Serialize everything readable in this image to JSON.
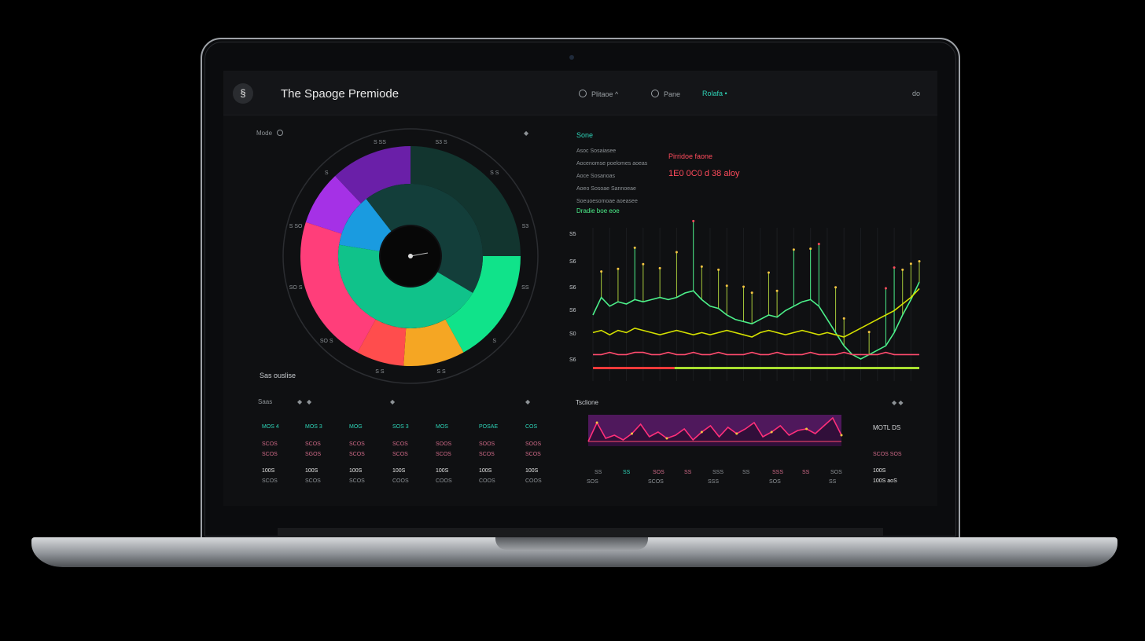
{
  "app": {
    "title": "The Spaoge Premiode",
    "logo_glyph": "§"
  },
  "nav": [
    {
      "label": "Plitaoe",
      "suffix": "^",
      "accent": false
    },
    {
      "label": "Pane",
      "suffix": "",
      "accent": false
    },
    {
      "label": "Rolafa",
      "suffix": "•",
      "accent": true
    }
  ],
  "top_right_label": "do",
  "donut_panel": {
    "header_label": "Mode",
    "footer_label": "Sas ouslise",
    "ring_labels": [
      "S3 S",
      "S S",
      "S3",
      "SS",
      "S",
      "S S",
      "S S",
      "SO S",
      "SO S",
      "S SO",
      "S",
      "S SS"
    ],
    "chart_data": {
      "type": "pie",
      "slices": [
        {
          "value": 25,
          "color": "#12352f"
        },
        {
          "value": 17,
          "color": "#10e38a"
        },
        {
          "value": 9,
          "color": "#f5a623"
        },
        {
          "value": 7,
          "color": "#ff4d4d"
        },
        {
          "value": 22,
          "color": "#ff3e7a"
        },
        {
          "value": 8,
          "color": "#a531e6"
        },
        {
          "value": 12,
          "color": "#6a1fa8"
        }
      ],
      "inner_ring": [
        {
          "value": 12,
          "color": "#1a9be0"
        },
        {
          "value": 44,
          "color": "#133e3a"
        },
        {
          "value": 44,
          "color": "#10c28a"
        }
      ]
    }
  },
  "line_panel": {
    "title": "Sone",
    "subtitle_lines": [
      "Asoc Sosaiasee",
      "Aocenomse poelomes aoeas",
      "Aoce Sosanoas",
      "Aoeo Sosoae Sannoeae",
      "Soeuoesomoae aoeasee"
    ],
    "section_label": "Dradie boe eoe",
    "alert_title": "Pirridoe faone",
    "alert_value": "1E0 0C0 d 38 aloy",
    "y_ticks": [
      "S5",
      "S6",
      "S6",
      "S6",
      "S0",
      "S6"
    ],
    "chart_data": {
      "type": "line",
      "series": [
        {
          "color": "#4cf08a",
          "values": [
            30,
            38,
            34,
            36,
            35,
            37,
            36,
            37,
            38,
            37,
            38,
            40,
            41,
            37,
            34,
            33,
            30,
            28,
            27,
            26,
            28,
            30,
            29,
            32,
            34,
            36,
            37,
            34,
            28,
            22,
            16,
            12,
            10,
            12,
            14,
            16,
            22,
            30,
            37,
            45
          ]
        },
        {
          "color": "#d4e000",
          "values": [
            22,
            23,
            21,
            23,
            22,
            24,
            23,
            22,
            21,
            22,
            23,
            22,
            21,
            22,
            21,
            22,
            23,
            22,
            21,
            20,
            22,
            23,
            22,
            21,
            22,
            23,
            22,
            21,
            22,
            21,
            20,
            22,
            24,
            26,
            28,
            30,
            32,
            35,
            38,
            42
          ]
        },
        {
          "color": "#ff4b6e",
          "values": [
            12,
            12,
            13,
            12,
            12,
            13,
            13,
            12,
            12,
            13,
            12,
            12,
            13,
            12,
            12,
            13,
            12,
            12,
            12,
            13,
            12,
            12,
            13,
            12,
            12,
            12,
            13,
            12,
            12,
            12,
            13,
            12,
            12,
            12,
            12,
            13,
            12,
            12,
            12,
            12
          ]
        }
      ],
      "spikes": [
        {
          "i": 1,
          "h": 55
        },
        {
          "i": 3,
          "h": 70
        },
        {
          "i": 5,
          "h": 110
        },
        {
          "i": 6,
          "h": 80
        },
        {
          "i": 8,
          "h": 62
        },
        {
          "i": 10,
          "h": 96
        },
        {
          "i": 12,
          "h": 148
        },
        {
          "i": 13,
          "h": 70
        },
        {
          "i": 15,
          "h": 82
        },
        {
          "i": 16,
          "h": 62
        },
        {
          "i": 18,
          "h": 74
        },
        {
          "i": 19,
          "h": 66
        },
        {
          "i": 21,
          "h": 90
        },
        {
          "i": 22,
          "h": 56
        },
        {
          "i": 24,
          "h": 120
        },
        {
          "i": 26,
          "h": 108
        },
        {
          "i": 27,
          "h": 132
        },
        {
          "i": 29,
          "h": 96
        },
        {
          "i": 30,
          "h": 58
        },
        {
          "i": 33,
          "h": 48
        },
        {
          "i": 35,
          "h": 122
        },
        {
          "i": 36,
          "h": 138
        },
        {
          "i": 37,
          "h": 96
        },
        {
          "i": 38,
          "h": 76
        },
        {
          "i": 39,
          "h": 44
        }
      ],
      "bar_red": 0.25,
      "bar_green": 0.75
    }
  },
  "table_panel": {
    "header_items": [
      "Saas",
      "◆",
      "◆",
      "◆"
    ],
    "columns": [
      "MOS 4",
      "MOS 3",
      "MOG",
      "SOS 3",
      "MOS",
      "POSAE",
      "COS"
    ],
    "rows": [
      [
        "SCOS",
        "SCOS",
        "SCOS",
        "SCOS",
        "SOOS",
        "SOOS",
        "SOOS"
      ],
      [
        "SCOS",
        "SGOS",
        "SCOS",
        "SCOS",
        "SCOS",
        "SCOS",
        "SCOS"
      ],
      [
        "100S",
        "100S",
        "100S",
        "100S",
        "100S",
        "100S",
        "100S"
      ],
      [
        "SCOS",
        "SCOS",
        "SCOS",
        "COOS",
        "COOS",
        "COOS",
        "COOS"
      ]
    ]
  },
  "area_panel": {
    "title": "Tsclione",
    "side_label": "MOTL DS",
    "side_values": [
      "SCOS SOS",
      "100S",
      "100S aoS"
    ],
    "x_labels": [
      "SS",
      "SS",
      "SOS",
      "SS",
      "SSS",
      "SS",
      "SSS",
      "SS",
      "SOS"
    ],
    "x_labels_2": [
      "SOS",
      "SCOS",
      "SSS",
      "SOS",
      "SS"
    ],
    "chart_data": {
      "type": "area",
      "values": [
        6,
        30,
        10,
        14,
        8,
        16,
        28,
        12,
        18,
        10,
        14,
        22,
        8,
        18,
        26,
        12,
        24,
        16,
        22,
        30,
        12,
        18,
        26,
        14,
        20,
        22,
        16,
        26,
        36,
        14
      ],
      "color": "#ff2f7a",
      "fill": "#5a1a6a"
    }
  }
}
